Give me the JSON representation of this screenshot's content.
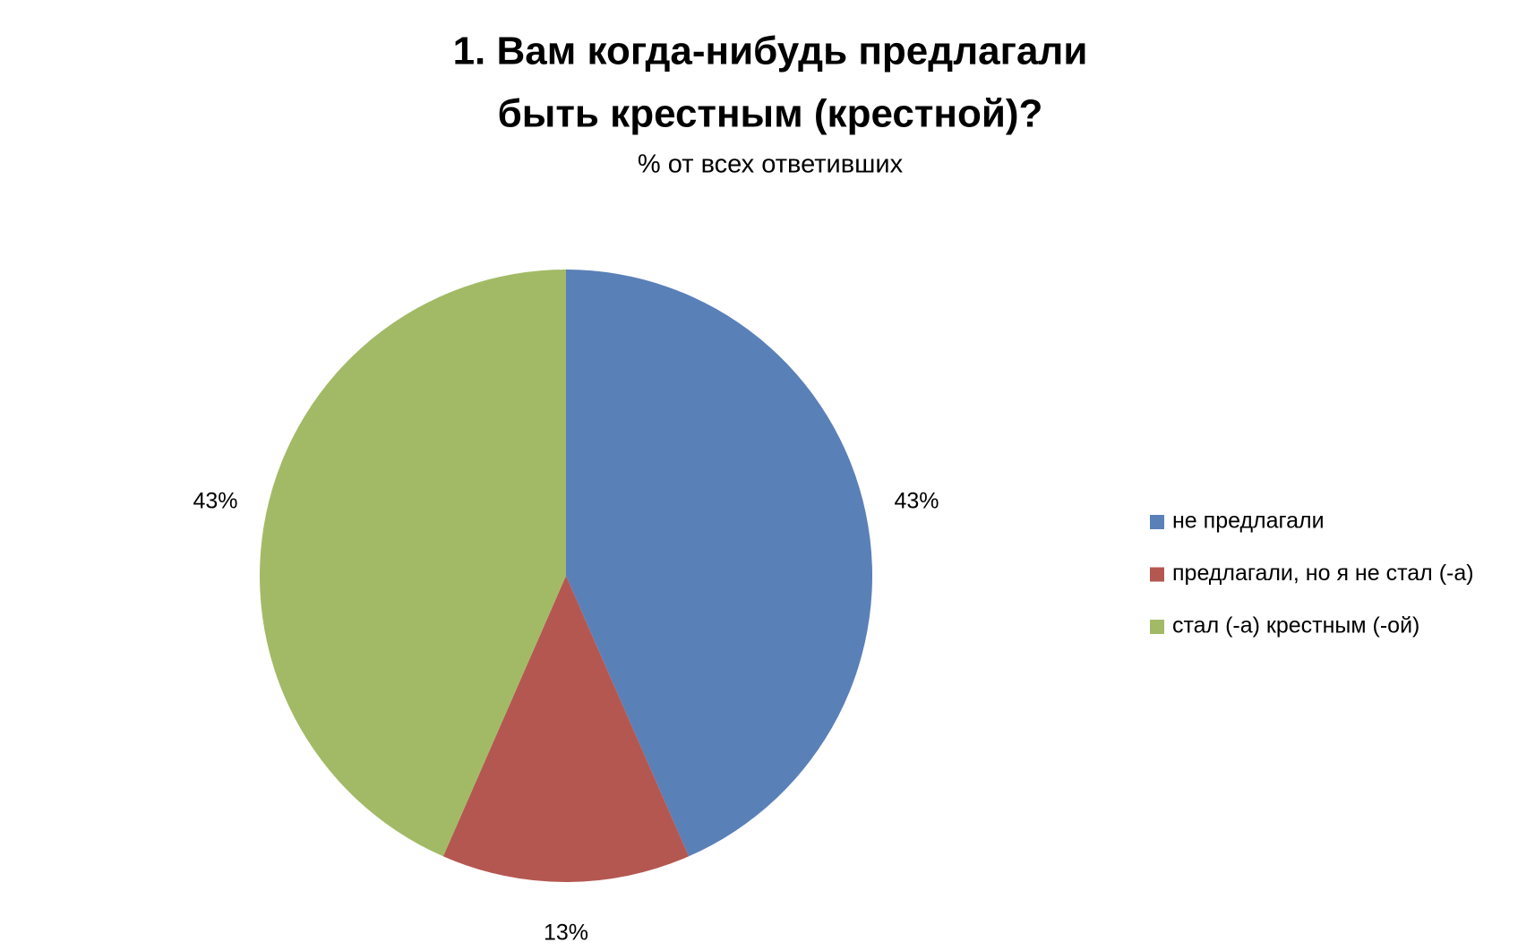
{
  "chart_data": {
    "type": "pie",
    "title": [
      "1. Вам когда-нибудь предлагали",
      "быть крестным (крестной)?"
    ],
    "subtitle": "% от всех ответивших",
    "categories": [
      "не предлагали",
      "предлагали, но я не стал (-а)",
      "стал (-а) крестным (-ой)"
    ],
    "values": [
      43,
      13,
      43
    ],
    "value_labels": [
      "43%",
      "13%",
      "43%"
    ],
    "colors": [
      "#5a80b8",
      "#b45751",
      "#a2ba66"
    ],
    "legend": "right"
  }
}
